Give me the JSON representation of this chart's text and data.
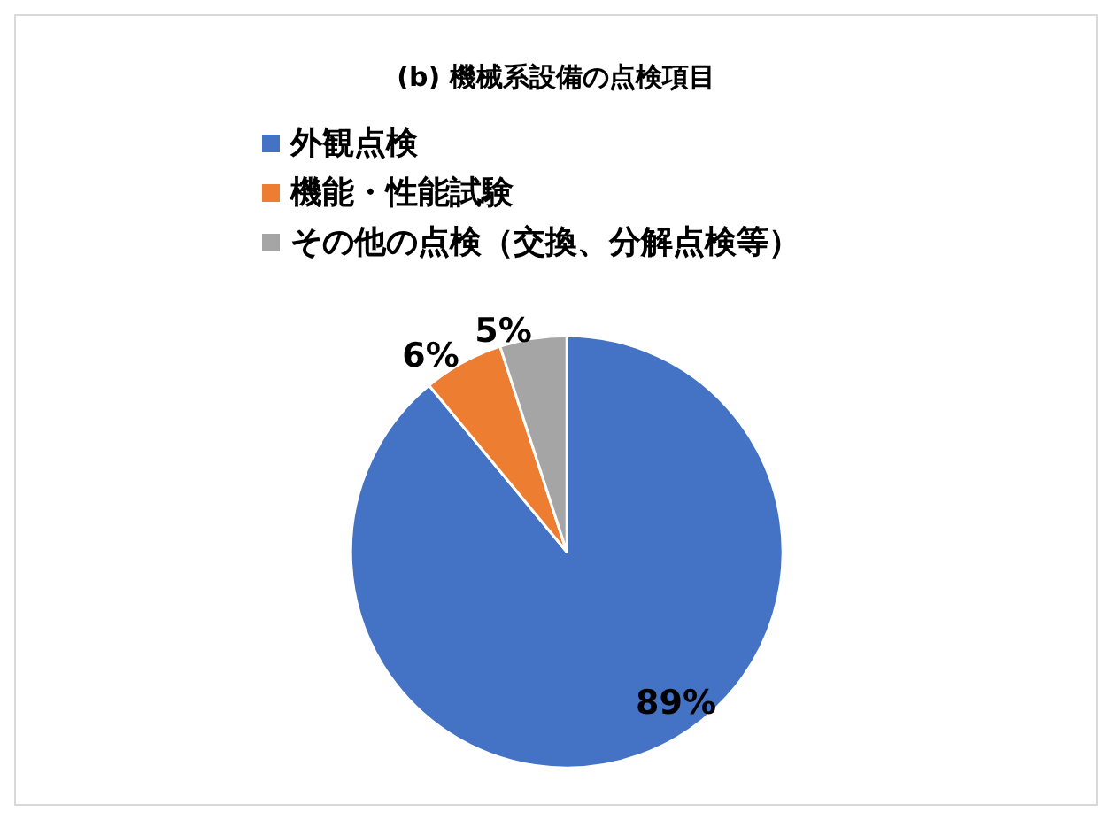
{
  "chart_data": {
    "type": "pie",
    "title": "(b) 機械系設備の点検項目",
    "categories": [
      "外観点検",
      "機能・性能試験",
      "その他の点検（交換、分解点検等）"
    ],
    "values": [
      89,
      6,
      5
    ],
    "colors": [
      "#4472c4",
      "#ed7d31",
      "#a5a5a5"
    ],
    "value_labels": [
      "89%",
      "6%",
      "5%"
    ],
    "legend": "top"
  }
}
